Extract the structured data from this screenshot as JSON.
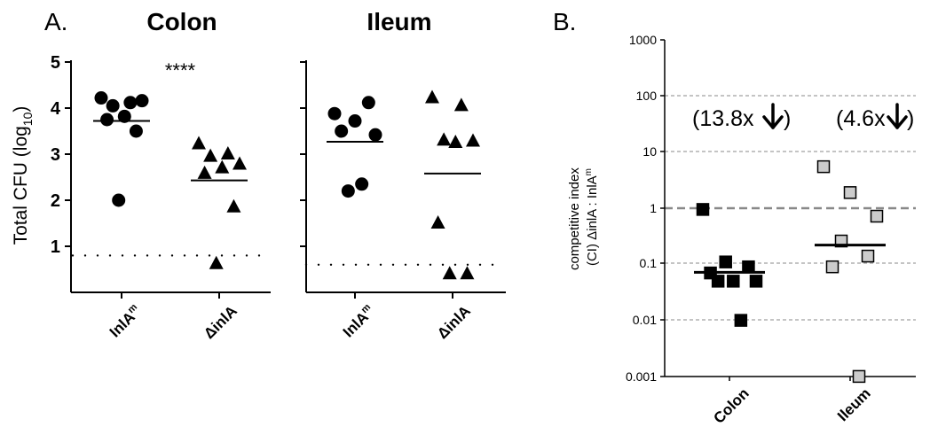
{
  "panel_a": {
    "label": "A.",
    "ylabel_main": "Total CFU (log",
    "ylabel_sub": "10",
    "ylabel_close": ")",
    "yticks": [
      "1",
      "2",
      "3",
      "4",
      "5"
    ],
    "significance": "****"
  },
  "panel_b": {
    "label": "B.",
    "ylabel_line1": "competitive index",
    "ylabel_line2": "(CI) ΔinlA : InlA",
    "ylabel_sup": "m"
  },
  "chart_data": [
    {
      "type": "scatter",
      "title": "Colon",
      "categories": [
        "InlA",
        "ΔinlA"
      ],
      "category_sup": [
        "m",
        ""
      ],
      "ylabel": "Total CFU (log10)",
      "ylim": [
        0,
        5
      ],
      "series": [
        {
          "category": "InlA",
          "marker": "circle",
          "values": [
            4.22,
            4.12,
            4.05,
            4.16,
            3.82,
            3.75,
            3.5,
            2.0
          ],
          "mean": 3.72
        },
        {
          "category": "ΔinlA",
          "marker": "triangle",
          "values": [
            3.22,
            3.0,
            2.95,
            2.78,
            2.7,
            2.58,
            1.85,
            0.62
          ],
          "mean": 2.43
        }
      ],
      "detection_limit": 0.8
    },
    {
      "type": "scatter",
      "title": "Ileum",
      "categories": [
        "InlA",
        "ΔinlA"
      ],
      "category_sup": [
        "m",
        ""
      ],
      "ylabel": "Total CFU (log10)",
      "ylim": [
        0,
        5
      ],
      "series": [
        {
          "category": "InlA",
          "marker": "circle",
          "values": [
            3.88,
            4.12,
            3.72,
            3.5,
            3.42,
            2.35,
            2.2
          ],
          "mean": 3.27
        },
        {
          "category": "ΔinlA",
          "marker": "triangle",
          "values": [
            4.22,
            4.05,
            3.3,
            3.28,
            3.25,
            1.5,
            0.4,
            0.4
          ],
          "mean": 2.58
        }
      ],
      "detection_limit": 0.6
    },
    {
      "type": "scatter",
      "title": "",
      "categories": [
        "Colon",
        "Ileum"
      ],
      "ylabel": "competitive index (CI) ΔinlA : InlAm",
      "yscale": "log",
      "ylim": [
        0.001,
        1000
      ],
      "yticks": [
        "0.001",
        "0.01",
        "0.1",
        "1",
        "10",
        "100",
        "1000"
      ],
      "grid": true,
      "reference_line": 1,
      "series": [
        {
          "category": "Colon",
          "marker": "square",
          "color": "#000000",
          "values": [
            0.95,
            0.11,
            0.09,
            0.07,
            0.05,
            0.05,
            0.05,
            0.01
          ],
          "median": 0.072
        },
        {
          "category": "Ileum",
          "marker": "square",
          "color": "#cccccc",
          "values": [
            5.5,
            1.9,
            0.72,
            0.26,
            0.14,
            0.09,
            0.001
          ],
          "median": 0.22
        }
      ],
      "annotations": [
        "(13.8x",
        ")",
        "(4.6x",
        ")"
      ]
    }
  ]
}
